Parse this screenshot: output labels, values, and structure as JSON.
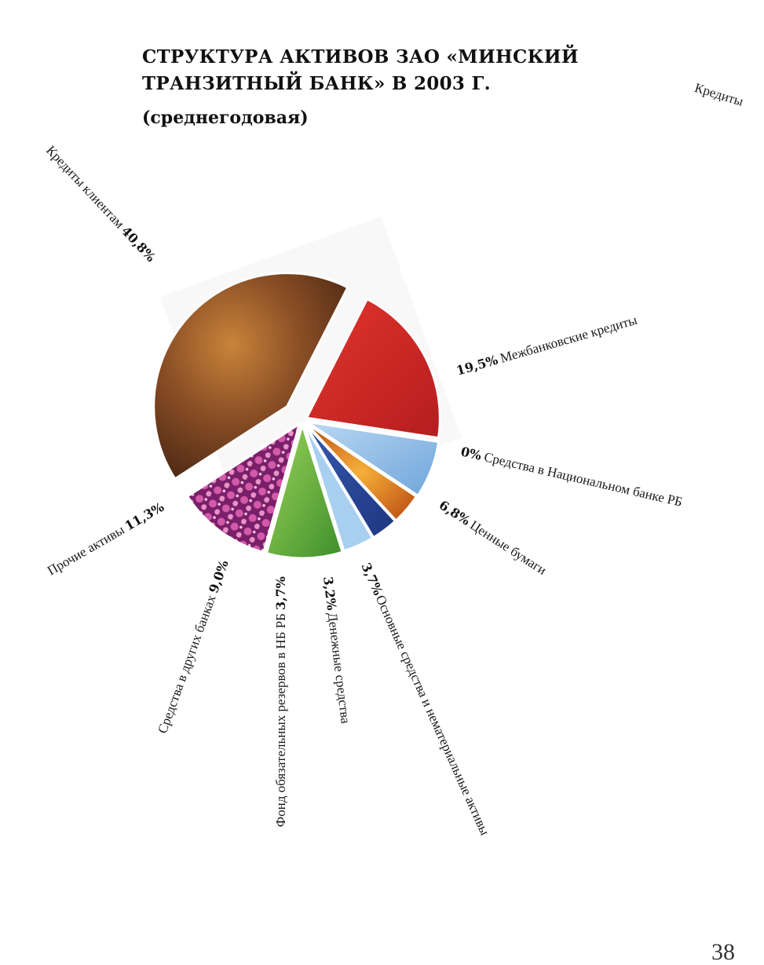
{
  "title_lines": [
    "СТРУКТУРА АКТИВОВ ЗАО «МИНСКИЙ",
    "ТРАНЗИТНЫЙ БАНК» В 2003 Г."
  ],
  "subtitle": "(среднегодовая)",
  "corner_text": "Кредиты",
  "page_number": "38",
  "chart_data": {
    "type": "pie",
    "title": "СТРУКТУРА АКТИВОВ ЗАО «МИНСКИЙ ТРАНЗИТНЫЙ БАНК» В 2003 Г.",
    "subtitle": "(среднегодовая)",
    "slices": [
      {
        "label": "Межбанковские кредиты",
        "value": 19.5,
        "value_text": "19,5%",
        "color": "#d42a26"
      },
      {
        "label": "Средства в Национальном банке РБ",
        "value": 0,
        "value_text": "0%",
        "color": "#9fc6ea"
      },
      {
        "label": "Ценные бумаги",
        "value": 6.8,
        "value_text": "6,8%",
        "color": "#8fbde6"
      },
      {
        "label": "Основные средства и нематериальные активы",
        "value": 3.7,
        "value_text": "3,7%",
        "color": "#e8731c"
      },
      {
        "label": "Денежные средства",
        "value": 3.2,
        "value_text": "3,2%",
        "color": "#2a4a9c"
      },
      {
        "label": "Фонд обязательных резервов в НБ РБ",
        "value": 3.7,
        "value_text": "3,7%",
        "color": "#a8cff0"
      },
      {
        "label": "Средства в других банках",
        "value": 9.0,
        "value_text": "9,0%",
        "color": "#6cb63c"
      },
      {
        "label": "Прочие активы",
        "value": 11.3,
        "value_text": "11,3%",
        "color": "#a8307c"
      },
      {
        "label": "Кредиты клиентам",
        "value": 40.8,
        "value_text": "40,8%",
        "color": "#6b3a1e"
      }
    ]
  }
}
